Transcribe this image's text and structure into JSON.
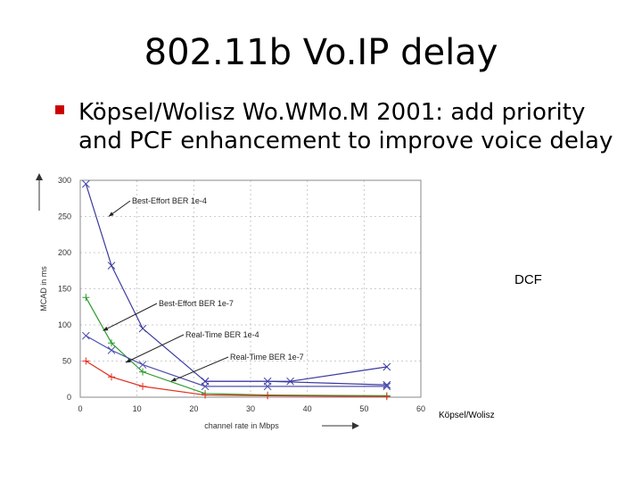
{
  "slide": {
    "title": "802.11b Vo.IP delay",
    "bullet_line1": "Köpsel/Wolisz Wo.WMo.M 2001: add priority",
    "bullet_line2": "and PCF enhancement to improve voice delay",
    "dcf_label": "DCF",
    "credit": "Köpsel/Wolisz"
  },
  "colors": {
    "bullet": "#cc0000"
  },
  "chart_data": {
    "type": "line",
    "xlabel": "channel rate in Mbps",
    "ylabel": "MCAD in ms",
    "xlim": [
      0,
      60
    ],
    "ylim": [
      0,
      300
    ],
    "xticks": [
      0,
      10,
      20,
      30,
      40,
      50,
      60
    ],
    "yticks": [
      0,
      50,
      100,
      150,
      200,
      250,
      300
    ],
    "grid": true,
    "series": [
      {
        "name": "Best-Effort BER 1e-4",
        "color": "#3a3aa0",
        "marker": "x",
        "x": [
          1,
          5.5,
          11,
          22,
          33,
          54
        ],
        "y": [
          295,
          182,
          95,
          22,
          22,
          17
        ]
      },
      {
        "name": "Best-Effort BER 1e-7",
        "color": "#2a9a2a",
        "marker": "+",
        "x": [
          1,
          5.5,
          11,
          22,
          33,
          54
        ],
        "y": [
          138,
          75,
          35,
          5,
          3,
          2
        ]
      },
      {
        "name": "Real-Time BER 1e-4",
        "color": "#5050b0",
        "marker": "x",
        "x": [
          1,
          5.5,
          11,
          22,
          33,
          54
        ],
        "y": [
          85,
          65,
          45,
          15,
          15,
          15
        ]
      },
      {
        "name": "Real-Time BER 1e-7",
        "color": "#e03020",
        "marker": "+",
        "x": [
          1,
          5.5,
          11,
          22,
          33,
          54
        ],
        "y": [
          50,
          28,
          15,
          3,
          2,
          1
        ]
      },
      {
        "name": "DCF",
        "color": "#3a3aa0",
        "marker": "x",
        "x": [
          22,
          37,
          54
        ],
        "y": [
          22,
          22,
          42
        ]
      }
    ],
    "annotations": [
      {
        "text": "Best-Effort BER 1e-4",
        "target": [
          5,
          250
        ]
      },
      {
        "text": "Best-Effort BER 1e-7",
        "target": [
          4,
          92
        ]
      },
      {
        "text": "Real-Time BER 1e-4",
        "target": [
          8,
          48
        ]
      },
      {
        "text": "Real-Time BER 1e-7",
        "target": [
          16,
          22
        ]
      }
    ]
  }
}
